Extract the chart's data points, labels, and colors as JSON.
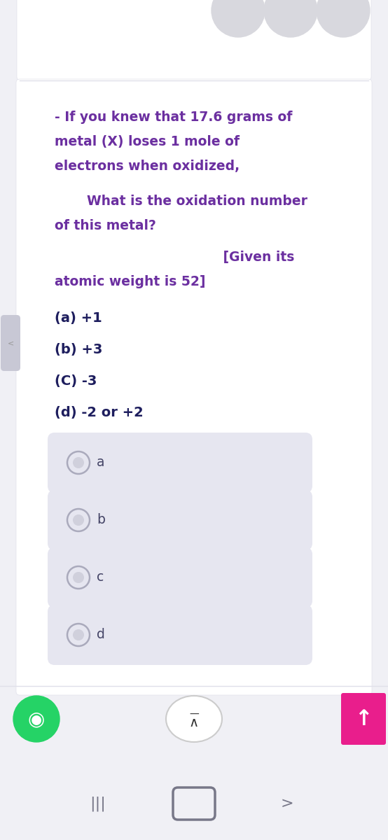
{
  "bg_color": "#f0f0f5",
  "page_bg": "#ffffff",
  "card_bg": "#ffffff",
  "option_bg": "#e6e6f0",
  "text_color_purple": "#6b2fa0",
  "text_color_dark": "#1e1e5e",
  "question_line1": "- If you knew that 17.6 grams of",
  "question_line2": "metal (X) loses 1 mole of",
  "question_line3": "electrons when oxidized,",
  "question_sub1": "    What is the oxidation number",
  "question_sub2": "of this metal?",
  "given_right": "                                     [Given its",
  "given_left": "atomic weight is 52]",
  "option_a_label": "(a) +1",
  "option_b_label": "(b) +3",
  "option_c_label": "(C) -3",
  "option_d_label": "(d) -2 or +2",
  "choice_a": "a",
  "choice_b": "b",
  "choice_c": "c",
  "choice_d": "d",
  "top_circles_color": "#d8d8de",
  "radio_border": "#aaaabc",
  "radio_fill": "#e6e6f0",
  "radio_inner": "#d0d0dc",
  "whatsapp_green": "#25d366",
  "up_arrow_pink": "#e91e8c",
  "nav_color": "#777788",
  "separator_color": "#e0e0ea",
  "left_bar_color": "#ccccdd"
}
